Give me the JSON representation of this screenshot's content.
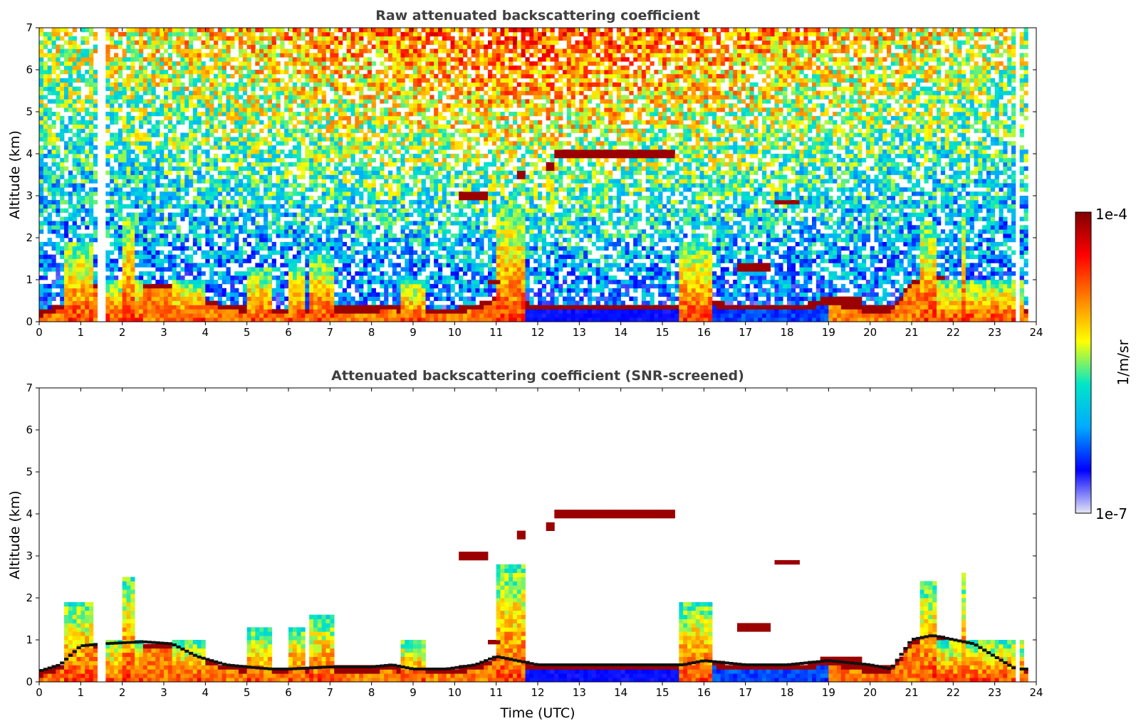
{
  "chart_data": [
    {
      "type": "heatmap",
      "title": "Raw attenuated backscattering coefficient",
      "xlabel": "",
      "ylabel": "Altitude (km)",
      "xlim": [
        0,
        24
      ],
      "ylim": [
        0,
        7
      ],
      "x_ticks": [
        "0",
        "1",
        "2",
        "3",
        "4",
        "5",
        "6",
        "7",
        "8",
        "9",
        "10",
        "11",
        "12",
        "13",
        "14",
        "15",
        "16",
        "17",
        "18",
        "19",
        "20",
        "21",
        "22",
        "23",
        "24"
      ],
      "y_ticks": [
        "0",
        "1",
        "2",
        "3",
        "4",
        "5",
        "6",
        "7"
      ],
      "screened": false
    },
    {
      "type": "heatmap",
      "title": "Attenuated backscattering coefficient (SNR-screened)",
      "xlabel": "Time (UTC)",
      "ylabel": "Altitude (km)",
      "xlim": [
        0,
        24
      ],
      "ylim": [
        0,
        7
      ],
      "x_ticks": [
        "0",
        "1",
        "2",
        "3",
        "4",
        "5",
        "6",
        "7",
        "8",
        "9",
        "10",
        "11",
        "12",
        "13",
        "14",
        "15",
        "16",
        "17",
        "18",
        "19",
        "20",
        "21",
        "22",
        "23",
        "24"
      ],
      "y_ticks": [
        "0",
        "1",
        "2",
        "3",
        "4",
        "5",
        "6",
        "7"
      ],
      "screened": true
    }
  ],
  "colorbar": {
    "label": "1/m/sr",
    "max_label": "1e-4",
    "min_label": "1e-7",
    "scale": "log",
    "colormap": [
      "#e6e6f5",
      "#0000ff",
      "#00aaff",
      "#00e6c8",
      "#ffff00",
      "#ff8000",
      "#ff0000",
      "#800000"
    ]
  },
  "features": {
    "boundary_layer_top": [
      [
        0.0,
        0.25
      ],
      [
        0.5,
        0.4
      ],
      [
        1.0,
        0.85
      ],
      [
        1.5,
        0.9
      ],
      [
        2.5,
        0.95
      ],
      [
        3.2,
        0.9
      ],
      [
        3.8,
        0.6
      ],
      [
        4.5,
        0.4
      ],
      [
        5.0,
        0.35
      ],
      [
        5.6,
        0.3
      ],
      [
        6.0,
        0.3
      ],
      [
        7.0,
        0.35
      ],
      [
        8.0,
        0.35
      ],
      [
        8.5,
        0.4
      ],
      [
        9.0,
        0.3
      ],
      [
        9.8,
        0.3
      ],
      [
        10.5,
        0.4
      ],
      [
        11.0,
        0.6
      ],
      [
        12.0,
        0.4
      ],
      [
        13.0,
        0.4
      ],
      [
        14.0,
        0.4
      ],
      [
        15.5,
        0.4
      ],
      [
        16.0,
        0.5
      ],
      [
        17.0,
        0.4
      ],
      [
        18.0,
        0.4
      ],
      [
        19.0,
        0.5
      ],
      [
        20.0,
        0.4
      ],
      [
        20.5,
        0.3
      ],
      [
        21.0,
        1.0
      ],
      [
        21.5,
        1.1
      ],
      [
        22.0,
        1.0
      ],
      [
        22.5,
        0.9
      ],
      [
        23.0,
        0.6
      ],
      [
        23.5,
        0.3
      ],
      [
        23.8,
        0.3
      ]
    ],
    "cloud_layers": [
      {
        "x0": 12.4,
        "x1": 15.3,
        "y": 4.0,
        "t": 0.1
      },
      {
        "x0": 10.1,
        "x1": 10.8,
        "y": 3.0,
        "t": 0.08
      },
      {
        "x0": 17.7,
        "x1": 18.3,
        "y": 2.85,
        "t": 0.1
      },
      {
        "x0": 16.8,
        "x1": 17.6,
        "y": 1.3,
        "t": 0.06
      },
      {
        "x0": 18.8,
        "x1": 19.8,
        "y": 0.5,
        "t": 0.08
      },
      {
        "x0": 19.8,
        "x1": 20.5,
        "y": 0.3,
        "t": 0.07
      },
      {
        "x0": 10.8,
        "x1": 11.1,
        "y": 0.95,
        "t": 0.06
      },
      {
        "x0": 12.2,
        "x1": 12.4,
        "y": 3.7,
        "t": 0.1
      },
      {
        "x0": 11.5,
        "x1": 11.7,
        "y": 3.5,
        "t": 0.08
      }
    ],
    "aerosol_columns": [
      {
        "x0": 0.6,
        "x1": 1.3,
        "y0": 0.0,
        "y1": 1.9
      },
      {
        "x0": 1.5,
        "x1": 2.5,
        "y0": 0.0,
        "y1": 1.0
      },
      {
        "x0": 2.0,
        "x1": 2.3,
        "y0": 0.0,
        "y1": 2.5
      },
      {
        "x0": 3.2,
        "x1": 4.0,
        "y0": 0.0,
        "y1": 1.0
      },
      {
        "x0": 5.0,
        "x1": 5.6,
        "y0": 0.0,
        "y1": 1.25
      },
      {
        "x0": 6.0,
        "x1": 6.4,
        "y0": 0.0,
        "y1": 1.3
      },
      {
        "x0": 6.5,
        "x1": 7.1,
        "y0": 0.0,
        "y1": 1.55
      },
      {
        "x0": 8.7,
        "x1": 9.3,
        "y0": 0.0,
        "y1": 1.0
      },
      {
        "x0": 11.0,
        "x1": 11.7,
        "y0": 0.0,
        "y1": 2.8
      },
      {
        "x0": 15.4,
        "x1": 16.2,
        "y0": 0.0,
        "y1": 1.9
      },
      {
        "x0": 21.2,
        "x1": 21.6,
        "y0": 0.0,
        "y1": 2.4
      },
      {
        "x0": 22.2,
        "x1": 22.3,
        "y0": 0.0,
        "y1": 2.6
      },
      {
        "x0": 21.6,
        "x1": 23.7,
        "y0": 0.0,
        "y1": 1.0
      }
    ],
    "data_gaps": [
      [
        1.45,
        1.55
      ],
      [
        23.5,
        23.55
      ],
      [
        23.8,
        24.0
      ]
    ]
  }
}
